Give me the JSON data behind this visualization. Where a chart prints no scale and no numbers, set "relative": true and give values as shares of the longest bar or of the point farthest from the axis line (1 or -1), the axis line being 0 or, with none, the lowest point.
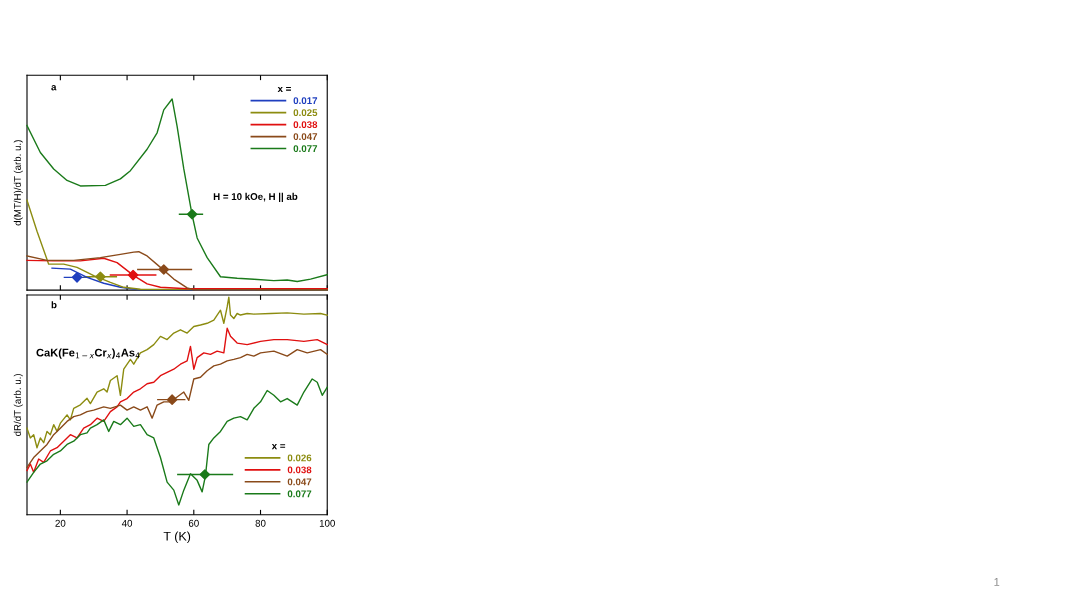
{
  "chart_data": [
    {
      "type": "line",
      "relative": true,
      "ylabel": "d(MT/H)/dT (arb. u.)",
      "xlim": [
        10,
        100
      ],
      "xticks": [
        20,
        40,
        60,
        80,
        100
      ],
      "tick_labels": false,
      "legend": "top right",
      "legend_title": "x =",
      "annotations": [
        "a",
        "H = 10 kOe, H || ab"
      ],
      "series": [
        {
          "name": "0.017",
          "color": "#1f3fbf",
          "x": [
            17.5,
            23,
            28,
            33,
            38,
            43,
            100
          ],
          "values": [
            0.115,
            0.11,
            0.067,
            0.036,
            0.015,
            0.003,
            0
          ]
        },
        {
          "name": "0.025",
          "color": "#8c8c10",
          "x": [
            10,
            13,
            16.5,
            21,
            25,
            30,
            35,
            39,
            44,
            100
          ],
          "values": [
            0.471,
            0.308,
            0.136,
            0.136,
            0.119,
            0.076,
            0.041,
            0.015,
            0.005,
            0.002
          ]
        },
        {
          "name": "0.038",
          "color": "#e01010",
          "x": [
            10,
            18,
            26,
            33,
            37,
            42,
            46,
            50,
            58,
            100
          ],
          "values": [
            0.156,
            0.153,
            0.153,
            0.167,
            0.144,
            0.076,
            0.033,
            0.015,
            0.007,
            0.007
          ]
        },
        {
          "name": "0.047",
          "color": "#8a4a1a",
          "x": [
            10,
            16,
            24,
            32,
            38,
            42,
            43.5,
            46,
            50,
            54,
            58,
            60,
            100
          ],
          "values": [
            0.179,
            0.156,
            0.156,
            0.17,
            0.187,
            0.199,
            0.201,
            0.179,
            0.119,
            0.058,
            0.012,
            0.002,
            0.002
          ]
        },
        {
          "name": "0.077",
          "color": "#1a7a1a",
          "x": [
            10,
            14,
            18,
            22,
            26,
            33.5,
            38,
            41,
            46,
            49,
            51,
            53.5,
            55,
            57,
            59.5,
            61,
            64,
            68,
            73,
            78,
            84,
            88,
            91,
            95,
            100
          ],
          "values": [
            0.861,
            0.72,
            0.634,
            0.574,
            0.545,
            0.548,
            0.582,
            0.625,
            0.737,
            0.823,
            0.943,
            1,
            0.857,
            0.634,
            0.393,
            0.273,
            0.17,
            0.07,
            0.062,
            0.057,
            0.05,
            0.053,
            0.045,
            0.058,
            0.081
          ]
        },
        {
          "type": "scatter",
          "marker": "diamond",
          "color": "#1f3fbf",
          "x": [
            25
          ],
          "values": [
            0.067
          ],
          "xerrors": [
            [
              21,
              29
            ]
          ]
        },
        {
          "type": "scatter",
          "marker": "diamond",
          "color": "#8c8c10",
          "x": [
            32
          ],
          "values": [
            0.07
          ],
          "xerrors": [
            [
              27,
              37
            ]
          ]
        },
        {
          "type": "scatter",
          "marker": "diamond",
          "color": "#e01010",
          "x": [
            41.8
          ],
          "values": [
            0.079
          ],
          "xerrors": [
            [
              34.8,
              48.8
            ]
          ]
        },
        {
          "type": "scatter",
          "marker": "diamond",
          "color": "#8a4a1a",
          "x": [
            51
          ],
          "values": [
            0.108
          ],
          "xerrors": [
            [
              43,
              59.5
            ]
          ]
        },
        {
          "type": "scatter",
          "marker": "diamond",
          "color": "#1a7a1a",
          "x": [
            59.5
          ],
          "values": [
            0.397
          ],
          "xerrors": [
            [
              55.5,
              62.8
            ]
          ]
        }
      ]
    },
    {
      "type": "line",
      "relative": true,
      "xlabel": "T (K)",
      "ylabel": "dR/dT (arb. u.)",
      "xlim": [
        10,
        100
      ],
      "xticks": [
        20,
        40,
        60,
        80,
        100
      ],
      "tick_labels": "x",
      "legend": "bottom right",
      "legend_title": "x =",
      "annotations": [
        "b",
        "CaK(Fe$_{1−x}$Cr$_{x}$)$_{4}$As$_{4}$",
        "1"
      ],
      "series": [
        {
          "name": "0.026",
          "color": "#8c8c10",
          "x": [
            10,
            11,
            12,
            13,
            14,
            15,
            16,
            17,
            18,
            19,
            20,
            22,
            23,
            24,
            26,
            28,
            29,
            31,
            33,
            34,
            35,
            37,
            38,
            39,
            41,
            42,
            44,
            46,
            48,
            50,
            52,
            54,
            56,
            58,
            60,
            62,
            64,
            66,
            68,
            69,
            70,
            70.5,
            71,
            72,
            73,
            74,
            76,
            78,
            83,
            88,
            93,
            98,
            100
          ],
          "values": [
            0.398,
            0.353,
            0.368,
            0.308,
            0.353,
            0.331,
            0.383,
            0.368,
            0.414,
            0.383,
            0.421,
            0.459,
            0.436,
            0.489,
            0.505,
            0.535,
            0.511,
            0.564,
            0.579,
            0.564,
            0.617,
            0.639,
            0.549,
            0.669,
            0.714,
            0.692,
            0.744,
            0.759,
            0.782,
            0.82,
            0.805,
            0.835,
            0.85,
            0.835,
            0.865,
            0.872,
            0.88,
            0.895,
            0.94,
            0.88,
            0.955,
            1.0,
            0.918,
            0.902,
            0.925,
            0.918,
            0.925,
            0.922,
            0.925,
            0.928,
            0.922,
            0.925,
            0.917
          ]
        },
        {
          "name": "0.038",
          "color": "#e01010",
          "x": [
            10,
            11,
            12,
            13.5,
            15,
            17,
            19,
            21,
            23,
            25,
            27,
            29,
            31,
            33,
            35,
            37,
            38,
            40,
            42,
            44,
            46,
            48,
            50,
            52,
            54,
            56,
            58,
            59,
            60,
            61,
            63,
            65,
            67,
            69,
            70,
            71,
            73,
            76,
            80,
            84,
            88,
            93,
            97,
            100
          ],
          "values": [
            0.203,
            0.233,
            0.195,
            0.256,
            0.241,
            0.293,
            0.308,
            0.338,
            0.368,
            0.353,
            0.398,
            0.414,
            0.444,
            0.429,
            0.474,
            0.496,
            0.519,
            0.534,
            0.564,
            0.579,
            0.602,
            0.609,
            0.639,
            0.654,
            0.669,
            0.692,
            0.707,
            0.774,
            0.669,
            0.722,
            0.744,
            0.737,
            0.752,
            0.744,
            0.857,
            0.82,
            0.789,
            0.782,
            0.797,
            0.805,
            0.805,
            0.797,
            0.805,
            0.782
          ]
        },
        {
          "name": "0.047",
          "color": "#8a4a1a",
          "x": [
            10,
            12,
            14,
            16,
            18,
            20,
            22,
            24,
            26,
            28,
            30,
            33,
            35,
            38,
            40,
            42,
            44,
            46,
            47.5,
            49,
            51,
            53,
            55,
            57,
            58.5,
            60,
            62,
            64,
            66,
            68,
            70,
            72,
            74,
            76,
            78,
            80,
            84,
            88,
            91,
            94,
            98,
            100
          ],
          "values": [
            0.218,
            0.263,
            0.293,
            0.323,
            0.368,
            0.398,
            0.429,
            0.451,
            0.459,
            0.474,
            0.481,
            0.496,
            0.489,
            0.504,
            0.481,
            0.496,
            0.481,
            0.496,
            0.444,
            0.504,
            0.519,
            0.519,
            0.541,
            0.564,
            0.526,
            0.624,
            0.632,
            0.662,
            0.684,
            0.692,
            0.707,
            0.714,
            0.722,
            0.737,
            0.729,
            0.744,
            0.752,
            0.729,
            0.759,
            0.744,
            0.759,
            0.737
          ]
        },
        {
          "name": "0.077",
          "color": "#1a7a1a",
          "x": [
            10,
            12,
            14,
            16,
            18,
            20,
            22,
            24,
            26,
            28,
            29,
            31,
            33,
            34.5,
            36,
            38,
            40,
            42,
            44,
            46,
            48,
            50,
            52,
            54,
            55.5,
            57,
            59,
            61,
            62.5,
            63.5,
            64.5,
            66,
            68,
            70,
            72,
            74,
            76,
            78,
            80,
            82,
            84,
            86,
            88,
            91,
            93,
            95.5,
            97,
            98.5,
            100
          ],
          "values": [
            0.15,
            0.195,
            0.233,
            0.248,
            0.278,
            0.293,
            0.323,
            0.338,
            0.368,
            0.376,
            0.398,
            0.414,
            0.436,
            0.383,
            0.429,
            0.414,
            0.444,
            0.406,
            0.414,
            0.368,
            0.353,
            0.263,
            0.15,
            0.113,
            0.045,
            0.113,
            0.188,
            0.158,
            0.105,
            0.18,
            0.323,
            0.353,
            0.383,
            0.429,
            0.444,
            0.451,
            0.436,
            0.489,
            0.519,
            0.571,
            0.549,
            0.519,
            0.534,
            0.504,
            0.564,
            0.624,
            0.609,
            0.549,
            0.586
          ]
        },
        {
          "type": "scatter",
          "marker": "diamond",
          "color": "#8a4a1a",
          "x": [
            53.5
          ],
          "values": [
            0.529
          ],
          "xerrors": [
            [
              49,
              57.5
            ]
          ]
        },
        {
          "type": "scatter",
          "marker": "diamond",
          "color": "#1a7a1a",
          "x": [
            63.3
          ],
          "values": [
            0.185
          ],
          "xerrors": [
            [
              55,
              71.8
            ]
          ]
        }
      ]
    }
  ]
}
